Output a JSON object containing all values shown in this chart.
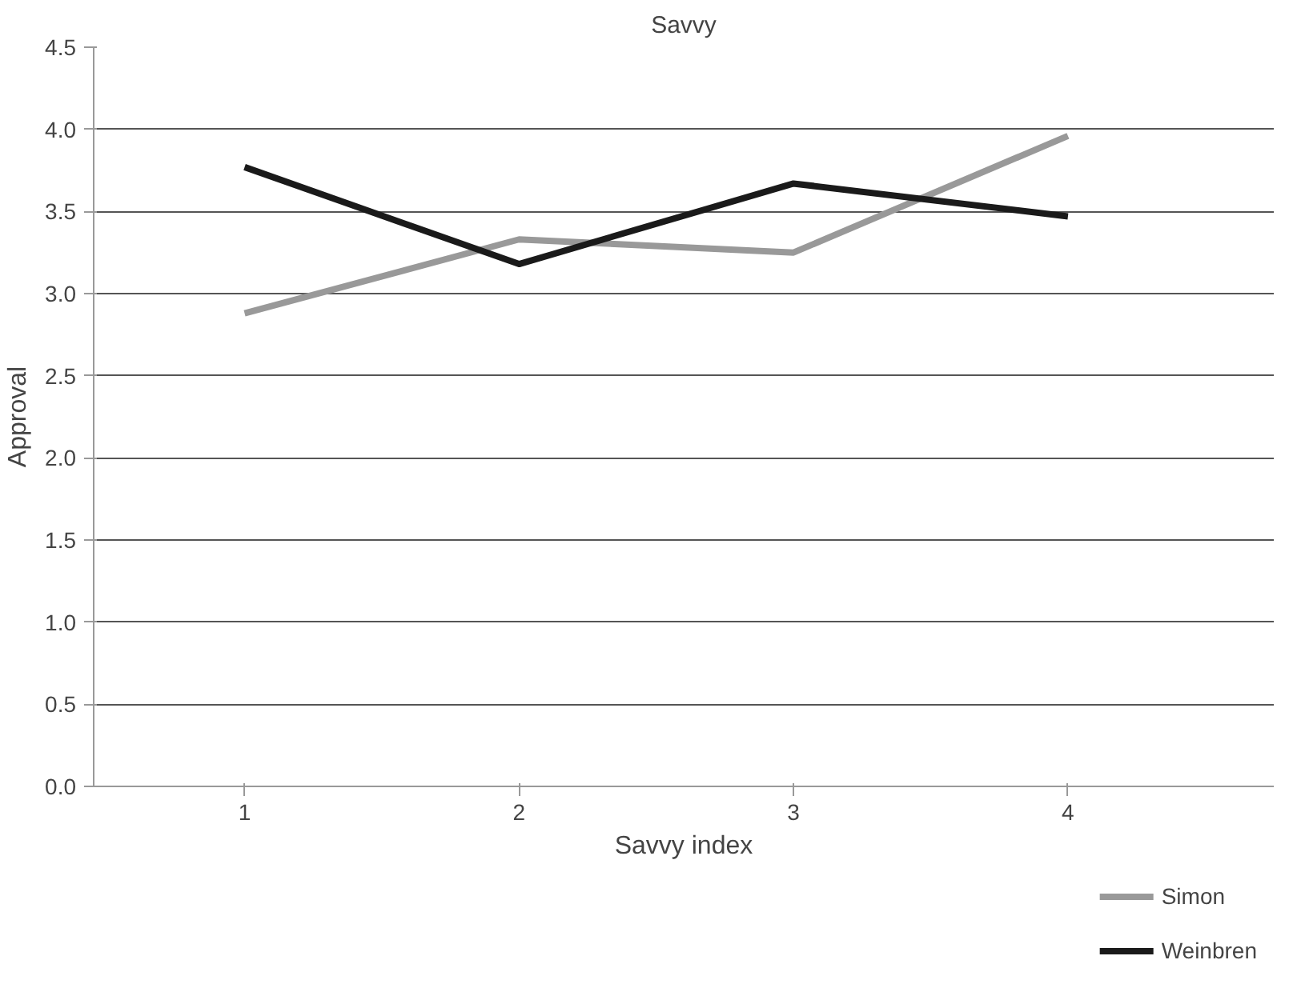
{
  "chart_data": {
    "type": "line",
    "title": "Savvy",
    "xlabel": "Savvy index",
    "ylabel": "Approval",
    "categories": [
      "1",
      "2",
      "3",
      "4"
    ],
    "series": [
      {
        "name": "Simon",
        "color": "#999999",
        "values": [
          2.88,
          3.33,
          3.25,
          3.96
        ]
      },
      {
        "name": "Weinbren",
        "color": "#1a1a1a",
        "values": [
          3.77,
          3.18,
          3.67,
          3.47
        ]
      }
    ],
    "ylim": [
      0,
      4.5
    ],
    "yticks": [
      {
        "value": 0,
        "label": "0.0"
      },
      0.5,
      {
        "value": 1,
        "label": "1.0"
      },
      1.5,
      {
        "value": 2,
        "label": "2.0"
      },
      2.5,
      {
        "value": 3,
        "label": "3.0"
      },
      3.5,
      {
        "value": 4,
        "label": "4.0"
      },
      4.5
    ],
    "grid": "y",
    "legend": "bottom right",
    "marker": "none",
    "line_style": "solid"
  }
}
